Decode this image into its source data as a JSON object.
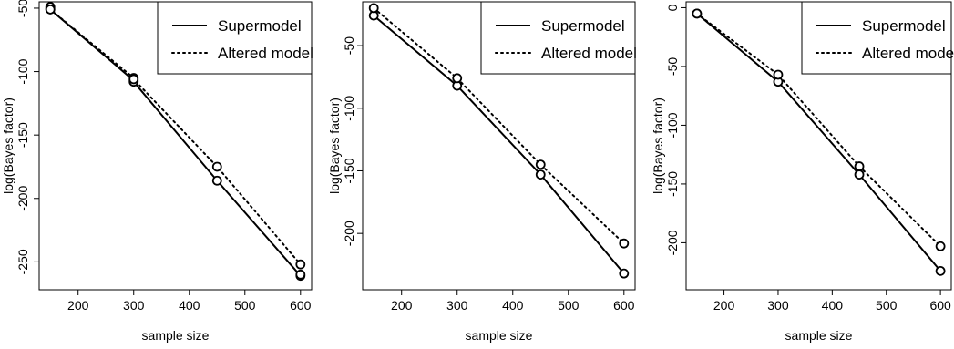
{
  "chart_data": [
    {
      "type": "line",
      "xlabel": "sample size",
      "ylabel": "log(Bayes factor)",
      "x_ticks": [
        200,
        300,
        400,
        500,
        600
      ],
      "y_ticks": [
        -50,
        -100,
        -150,
        -200,
        -250
      ],
      "xlim": [
        130,
        620
      ],
      "ylim": [
        -272,
        -45
      ],
      "legend_position": "top-right",
      "series": [
        {
          "name": "Supermodel",
          "line_style": "solid",
          "x": [
            150,
            150,
            300,
            300,
            450,
            600,
            600
          ],
          "y": [
            -50,
            -51,
            -107,
            -108,
            -186,
            -261,
            -260
          ]
        },
        {
          "name": "Altered model",
          "line_style": "dotted",
          "x": [
            150,
            150,
            300,
            300,
            450,
            600
          ],
          "y": [
            -49,
            -51,
            -105,
            -106,
            -175,
            -252
          ]
        }
      ]
    },
    {
      "type": "line",
      "xlabel": "sample size",
      "ylabel": "log(Bayes factor)",
      "x_ticks": [
        200,
        300,
        400,
        500,
        600
      ],
      "y_ticks": [
        -50,
        -100,
        -150,
        -200
      ],
      "xlim": [
        130,
        620
      ],
      "ylim": [
        -245,
        -15
      ],
      "legend_position": "top-right",
      "series": [
        {
          "name": "Supermodel",
          "line_style": "solid",
          "x": [
            150,
            300,
            450,
            600
          ],
          "y": [
            -26,
            -82,
            -153,
            -232
          ]
        },
        {
          "name": "Altered model",
          "line_style": "dotted",
          "x": [
            150,
            300,
            450,
            600
          ],
          "y": [
            -20,
            -76,
            -145,
            -208
          ]
        }
      ]
    },
    {
      "type": "line",
      "xlabel": "sample size",
      "ylabel": "log(Bayes factor)",
      "x_ticks": [
        200,
        300,
        400,
        500,
        600
      ],
      "y_ticks": [
        0,
        -50,
        -100,
        -150,
        -200
      ],
      "xlim": [
        130,
        620
      ],
      "ylim": [
        -240,
        5
      ],
      "legend_position": "top-right",
      "series": [
        {
          "name": "Supermodel",
          "line_style": "solid",
          "x": [
            150,
            300,
            450,
            600
          ],
          "y": [
            -5,
            -63,
            -142,
            -224
          ]
        },
        {
          "name": "Altered model",
          "line_style": "dotted",
          "x": [
            150,
            300,
            450,
            600
          ],
          "y": [
            -5,
            -57,
            -135,
            -203
          ]
        }
      ]
    }
  ]
}
